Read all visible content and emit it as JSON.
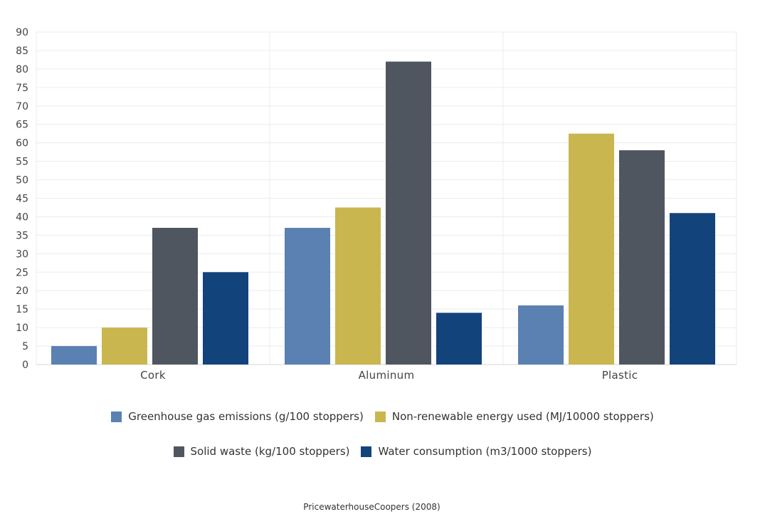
{
  "chart_data": {
    "type": "bar",
    "categories": [
      "Cork",
      "Aluminum",
      "Plastic"
    ],
    "series": [
      {
        "name": "Greenhouse gas emissions (g/100 stoppers)",
        "color": "#5a81b1",
        "values": [
          5,
          37,
          16
        ]
      },
      {
        "name": "Non-renewable energy used (MJ/10000 stoppers)",
        "color": "#c9b64f",
        "values": [
          10,
          42.5,
          62.5
        ]
      },
      {
        "name": "Solid waste (kg/100 stoppers)",
        "color": "#50565f",
        "values": [
          37,
          82,
          58
        ]
      },
      {
        "name": "Water consumption (m3/1000 stoppers)",
        "color": "#13437b",
        "values": [
          25,
          14,
          41
        ]
      }
    ],
    "ylim": [
      0,
      90
    ],
    "yticks": [
      0,
      5,
      10,
      15,
      20,
      25,
      30,
      35,
      40,
      45,
      50,
      55,
      60,
      65,
      70,
      75,
      80,
      85,
      90
    ],
    "grid": true,
    "legend_position": "bottom",
    "source": "PricewaterhouseCoopers (2008)"
  }
}
